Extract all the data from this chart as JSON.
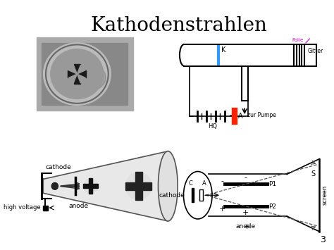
{
  "title": "Kathodenstrahlen",
  "title_fontsize": 20,
  "background_color": "#ffffff",
  "page_number": "3",
  "labels": {
    "K": "K",
    "A": "A",
    "HQ": "HQ",
    "Folie": "Folie",
    "Gitter": "Gitter",
    "zur_Pumpe": "zur Pumpe",
    "cathode_top": "cathode",
    "high_voltage": "high voltage",
    "anode_bottom": "anode",
    "cathode_right": "cathode",
    "anode_right": "anode",
    "P1": "P1",
    "P2": "P2",
    "S": "S",
    "screen": "screen",
    "C": "C",
    "minus": "-",
    "plus": "+"
  },
  "colors": {
    "K_bar": "#3399ff",
    "A_bar": "#ff2200",
    "folie_color": "#cc00cc",
    "black": "#000000",
    "gray": "#888888",
    "light_gray": "#cccccc",
    "dark_gray": "#444444"
  }
}
